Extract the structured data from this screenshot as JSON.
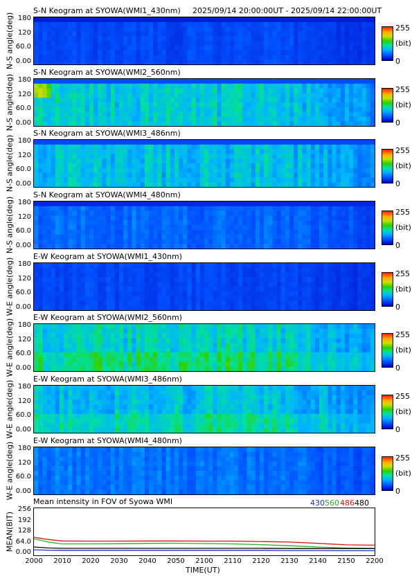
{
  "time_range": "2025/09/14 20:00:00UT - 2025/09/14 22:00:00UT",
  "colorbar": {
    "max": "255",
    "unit": "(bit)",
    "min": "0"
  },
  "colors": {
    "c430": "#1a2fd0",
    "c560": "#20b020",
    "c486": "#e01010",
    "c480": "#000000"
  },
  "chart_data": [
    {
      "type": "heatmap",
      "title": "S-N Keogram at SYOWA(WMI1_430nm)",
      "ylabel": "N-S angle(deg)",
      "yticks": [
        "180",
        "120",
        "60.0",
        "0.00"
      ],
      "ylim": [
        0,
        180
      ],
      "xlim": [
        2000,
        2200
      ],
      "base_intensity": 35
    },
    {
      "type": "heatmap",
      "title": "S-N Keogram at SYOWA(WMI2_560nm)",
      "ylabel": "N-S angle(deg)",
      "yticks": [
        "180",
        "120",
        "60.0",
        "0.00"
      ],
      "ylim": [
        0,
        180
      ],
      "xlim": [
        2000,
        2200
      ],
      "base_intensity": 95
    },
    {
      "type": "heatmap",
      "title": "S-N Keogram at SYOWA(WMI3_486nm)",
      "ylabel": "N-S angle(deg)",
      "yticks": [
        "180",
        "120",
        "60.0",
        "0.00"
      ],
      "ylim": [
        0,
        180
      ],
      "xlim": [
        2000,
        2200
      ],
      "base_intensity": 90
    },
    {
      "type": "heatmap",
      "title": "S-N Keogram at SYOWA(WMI4_480nm)",
      "ylabel": "N-S angle(deg)",
      "yticks": [
        "180",
        "120",
        "60.0",
        "0.00"
      ],
      "ylim": [
        0,
        180
      ],
      "xlim": [
        2000,
        2200
      ],
      "base_intensity": 50
    },
    {
      "type": "heatmap",
      "title": "E-W Keogram at SYOWA(WMI1_430nm)",
      "ylabel": "W-E angle(deg)",
      "yticks": [
        "180",
        "120",
        "60.0",
        "0.00"
      ],
      "ylim": [
        0,
        180
      ],
      "xlim": [
        2000,
        2200
      ],
      "base_intensity": 35
    },
    {
      "type": "heatmap",
      "title": "E-W Keogram at SYOWA(WMI2_560nm)",
      "ylabel": "W-E angle(deg)",
      "yticks": [
        "180",
        "120",
        "60.0",
        "0.00"
      ],
      "ylim": [
        0,
        180
      ],
      "xlim": [
        2000,
        2200
      ],
      "base_intensity": 100
    },
    {
      "type": "heatmap",
      "title": "E-W Keogram at SYOWA(WMI3_486nm)",
      "ylabel": "W-E angle(deg)",
      "yticks": [
        "180",
        "120",
        "60.0",
        "0.00"
      ],
      "ylim": [
        0,
        180
      ],
      "xlim": [
        2000,
        2200
      ],
      "base_intensity": 90
    },
    {
      "type": "heatmap",
      "title": "E-W Keogram at SYOWA(WMI4_480nm)",
      "ylabel": "W-E angle(deg)",
      "yticks": [
        "180",
        "120",
        "60.0",
        "0.00"
      ],
      "ylim": [
        0,
        180
      ],
      "xlim": [
        2000,
        2200
      ],
      "base_intensity": 55
    },
    {
      "type": "line",
      "title": "Mean intensity in FOV of Syowa WMI",
      "ylabel": "MEAN(BIT)",
      "xlabel": "TIME(UT)",
      "xlim": [
        2000,
        2200
      ],
      "ylim": [
        0,
        256
      ],
      "yticks": [
        "256",
        "192",
        "128",
        "64.0",
        "0.00"
      ],
      "xticks": [
        "2000",
        "2010",
        "2020",
        "2030",
        "2040",
        "2050",
        "2100",
        "2110",
        "2120",
        "2130",
        "2140",
        "2150",
        "2200"
      ],
      "x": [
        2000,
        2005,
        2010,
        2020,
        2030,
        2040,
        2050,
        2100,
        2110,
        2120,
        2130,
        2140,
        2150,
        2200
      ],
      "series": [
        {
          "name": "430",
          "values": [
            30,
            28,
            27,
            27,
            27,
            27,
            27,
            27,
            27,
            27,
            26,
            26,
            25,
            25
          ]
        },
        {
          "name": "560",
          "values": [
            90,
            72,
            62,
            62,
            63,
            65,
            66,
            64,
            62,
            58,
            52,
            45,
            40,
            38
          ]
        },
        {
          "name": "486",
          "values": [
            98,
            86,
            78,
            77,
            77,
            78,
            78,
            77,
            77,
            75,
            72,
            65,
            57,
            55
          ]
        },
        {
          "name": "480",
          "values": [
            45,
            40,
            38,
            38,
            38,
            38,
            38,
            38,
            38,
            38,
            37,
            37,
            36,
            36
          ]
        }
      ]
    }
  ]
}
